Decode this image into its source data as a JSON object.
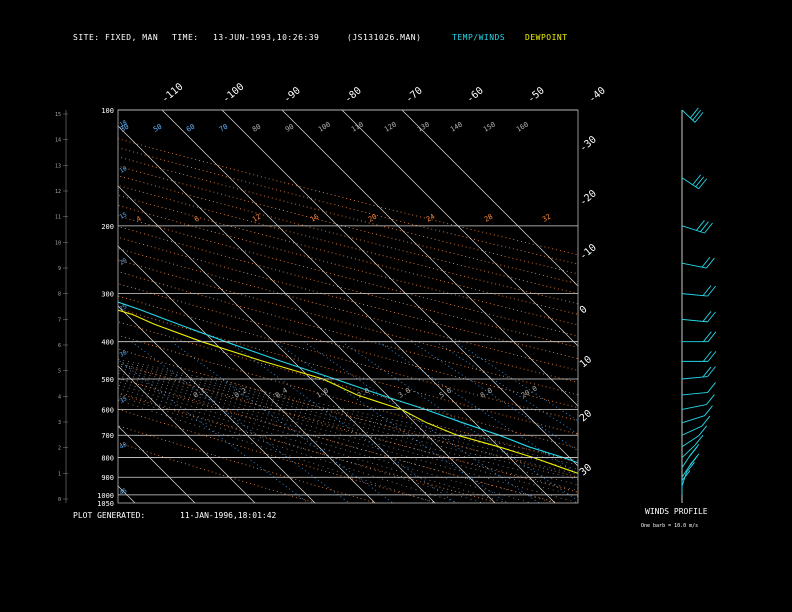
{
  "header": {
    "site_label": "SITE:",
    "site_value": "FIXED, MAN",
    "time_label": "TIME:",
    "time_value": "13-JUN-1993,10:26:39",
    "file": "(JS131026.MAN)",
    "legend_temp": "TEMP/WINDS",
    "legend_dew": "DEWPOINT"
  },
  "footer": {
    "generated_label": "PLOT GENERATED:",
    "generated_value": "11-JAN-1996,18:01:42",
    "winds_title": "WINDS PROFILE",
    "barb_note": "One barb = 10.0 m/s"
  },
  "colors": {
    "temp": "#22d8e8",
    "dewpoint": "#f0f000",
    "grid": "#d8d8d8",
    "isotherm": "#e0e0e0",
    "dry_adiabat": "#ff8a3c",
    "moist_adiabat": "#9a9a9a",
    "mixing_ratio": "#3aa0ff",
    "orange_label": "#ff8a3c"
  },
  "chart_data": {
    "type": "line",
    "title": "",
    "pressure_labels": [
      "100",
      "200",
      "300",
      "400",
      "500",
      "600",
      "700",
      "800",
      "900",
      "1000",
      "1050"
    ],
    "height_labels": [
      "15",
      "14",
      "13",
      "12",
      "11",
      "10",
      "9",
      "8",
      "7",
      "6",
      "5",
      "4",
      "3",
      "2",
      "1",
      "0"
    ],
    "top_temp_labels": [
      "-110",
      "-100",
      "-90",
      "-80",
      "-70",
      "-60",
      "-50",
      "-40"
    ],
    "right_temp_labels": [
      "-30",
      "-20",
      "-10",
      "0",
      "10",
      "20",
      "30"
    ],
    "isotherm_values": [
      -120,
      -110,
      -100,
      -90,
      -80,
      -70,
      -60,
      -50,
      -40,
      -30,
      -20,
      -10,
      0,
      10,
      20,
      30,
      40
    ],
    "theta_labels_top": [
      "30",
      "50",
      "60",
      "70",
      "80",
      "90",
      "100",
      "110",
      "120",
      "130",
      "140",
      "150",
      "160"
    ],
    "orange_labels": [
      "4",
      "6",
      "12",
      "16",
      "20",
      "24",
      "28",
      "32"
    ],
    "mixing_labels": [
      "0.1",
      "0.2",
      "0.4",
      "1.0",
      "2.0",
      "3.0",
      "5.0",
      "8.0",
      "20.0"
    ],
    "left_blue_labels": [
      "18",
      "10",
      "15",
      "20",
      "25",
      "30",
      "35",
      "40",
      "45"
    ],
    "series": [
      {
        "name": "TEMP/WINDS",
        "points": [
          [
            100,
            -84
          ],
          [
            110,
            -79
          ],
          [
            125,
            -79
          ],
          [
            140,
            -76
          ],
          [
            160,
            -72
          ],
          [
            180,
            -68
          ],
          [
            200,
            -62
          ],
          [
            220,
            -58
          ],
          [
            250,
            -52
          ],
          [
            280,
            -46
          ],
          [
            300,
            -42
          ],
          [
            330,
            -37
          ],
          [
            360,
            -33
          ],
          [
            400,
            -28
          ],
          [
            450,
            -22
          ],
          [
            500,
            -16
          ],
          [
            550,
            -11
          ],
          [
            600,
            -6
          ],
          [
            650,
            -2
          ],
          [
            700,
            2
          ],
          [
            750,
            5
          ],
          [
            800,
            9
          ],
          [
            850,
            12
          ],
          [
            900,
            15
          ],
          [
            950,
            19
          ],
          [
            1000,
            23
          ]
        ]
      },
      {
        "name": "DEWPOINT",
        "points": [
          [
            100,
            -86
          ],
          [
            110,
            -82
          ],
          [
            125,
            -81
          ],
          [
            140,
            -78
          ],
          [
            160,
            -74
          ],
          [
            180,
            -71
          ],
          [
            200,
            -66
          ],
          [
            220,
            -61
          ],
          [
            250,
            -56
          ],
          [
            280,
            -50
          ],
          [
            300,
            -47
          ],
          [
            320,
            -43
          ],
          [
            340,
            -39
          ],
          [
            360,
            -37
          ],
          [
            400,
            -32
          ],
          [
            450,
            -25
          ],
          [
            500,
            -18
          ],
          [
            550,
            -15
          ],
          [
            600,
            -10
          ],
          [
            650,
            -8
          ],
          [
            700,
            -5
          ],
          [
            750,
            0
          ],
          [
            800,
            4
          ],
          [
            850,
            7
          ],
          [
            900,
            10
          ],
          [
            950,
            12
          ],
          [
            1000,
            14
          ]
        ]
      }
    ],
    "wind_barbs": [
      {
        "p": 100,
        "dir": 330,
        "spd": 30
      },
      {
        "p": 150,
        "dir": 320,
        "spd": 25
      },
      {
        "p": 200,
        "dir": 300,
        "spd": 25
      },
      {
        "p": 250,
        "dir": 290,
        "spd": 20
      },
      {
        "p": 300,
        "dir": 280,
        "spd": 20
      },
      {
        "p": 350,
        "dir": 280,
        "spd": 15
      },
      {
        "p": 400,
        "dir": 270,
        "spd": 15
      },
      {
        "p": 450,
        "dir": 270,
        "spd": 15
      },
      {
        "p": 500,
        "dir": 260,
        "spd": 15
      },
      {
        "p": 550,
        "dir": 260,
        "spd": 10
      },
      {
        "p": 600,
        "dir": 250,
        "spd": 10
      },
      {
        "p": 650,
        "dir": 240,
        "spd": 10
      },
      {
        "p": 700,
        "dir": 230,
        "spd": 10
      },
      {
        "p": 750,
        "dir": 220,
        "spd": 10
      },
      {
        "p": 800,
        "dir": 210,
        "spd": 10
      },
      {
        "p": 850,
        "dir": 200,
        "spd": 15
      },
      {
        "p": 900,
        "dir": 200,
        "spd": 15
      },
      {
        "p": 950,
        "dir": 190,
        "spd": 10
      },
      {
        "p": 1000,
        "dir": 180,
        "spd": 10
      }
    ],
    "ylim": [
      100,
      1050
    ],
    "xlim": [
      -40,
      40
    ]
  }
}
